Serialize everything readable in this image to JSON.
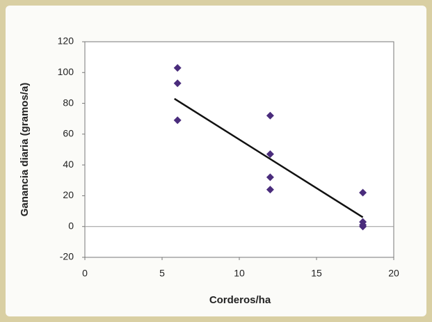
{
  "chart_data": {
    "type": "scatter",
    "xlabel": "Corderos/ha",
    "ylabel": "Ganancia diaria (gramos/a)",
    "series": [
      {
        "color": "#4a2c7c",
        "x": [
          6,
          6,
          6,
          12,
          12,
          12,
          12,
          18,
          18,
          18,
          18
        ],
        "values": [
          103,
          93,
          69,
          72,
          47,
          32,
          24,
          22,
          3,
          1,
          0
        ]
      }
    ],
    "trendline": {
      "color": "#111111",
      "x": [
        5.8,
        18
      ],
      "values": [
        83,
        6
      ]
    },
    "xlim": [
      0,
      20
    ],
    "xticks": [
      0,
      5,
      10,
      15,
      20
    ],
    "ylim": [
      -20,
      120
    ],
    "yticks": [
      -20,
      0,
      20,
      40,
      60,
      80,
      100,
      120
    ],
    "zero_line": true
  }
}
